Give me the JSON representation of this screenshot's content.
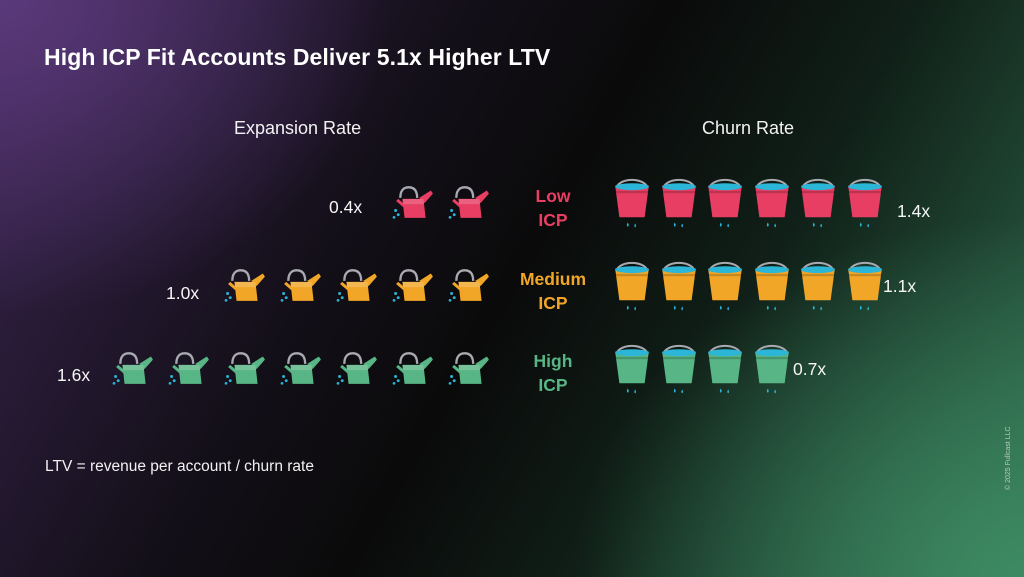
{
  "title": "High ICP Fit Accounts Deliver 5.1x Higher LTV",
  "headers": {
    "expansion": "Expansion Rate",
    "churn": "Churn Rate"
  },
  "rows": [
    {
      "label_line1": "Low",
      "label_line2": "ICP",
      "expansion_label": "0.4x",
      "churn_label": "1.4x",
      "color": "#e83e63"
    },
    {
      "label_line1": "Medium",
      "label_line2": "ICP",
      "expansion_label": "1.0x",
      "churn_label": "1.1x",
      "color": "#f2a628"
    },
    {
      "label_line1": "High",
      "label_line2": "ICP",
      "expansion_label": "1.6x",
      "churn_label": "0.7x",
      "color": "#58b585"
    }
  ],
  "footnote": "LTV = revenue per account / churn rate",
  "copyright": "© 2025 Fullcast LLC",
  "colors": {
    "water": "#2bb5d6",
    "handle": "#a9a9b0"
  },
  "chart_data": {
    "type": "pictograph",
    "title": "High ICP Fit Accounts Deliver 5.1x Higher LTV",
    "categories": [
      "Low ICP",
      "Medium ICP",
      "High ICP"
    ],
    "series": [
      {
        "name": "Expansion Rate",
        "icon": "watering-can-icon",
        "values": [
          0.4,
          1.0,
          1.6
        ],
        "icon_counts": [
          2,
          5,
          7
        ]
      },
      {
        "name": "Churn Rate",
        "icon": "leaking-bucket-icon",
        "values": [
          1.4,
          1.1,
          0.7
        ],
        "icon_counts": [
          6,
          5.3,
          3.3
        ]
      }
    ],
    "annotation": "LTV = revenue per account / churn rate"
  }
}
